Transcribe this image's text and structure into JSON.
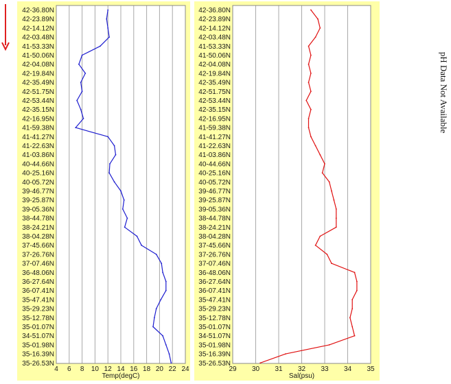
{
  "indicator": {
    "icon": "down-arrow-icon",
    "color": "#e02020"
  },
  "side_note": "pH Data Not Available",
  "colors": {
    "panel_bg": "#ffffa8",
    "plot_bg": "#ffffff",
    "grid": "#a8a8a8",
    "temp_line": "#1c1ccf",
    "sal_line": "#e01010"
  },
  "chart_data": [
    {
      "type": "line",
      "xlabel": "Temp(degC)",
      "xlim": [
        4,
        24
      ],
      "xticks": [
        4,
        6,
        8,
        10,
        12,
        14,
        16,
        18,
        20,
        22,
        24
      ],
      "grid": true,
      "categories": [
        "42-36.80N",
        "42-23.89N",
        "42-14.12N",
        "42-03.48N",
        "41-53.33N",
        "41-50.06N",
        "42-04.08N",
        "42-19.84N",
        "42-35.49N",
        "42-51.75N",
        "42-53.44N",
        "42-35.15N",
        "42-16.95N",
        "41-59.38N",
        "41-41.27N",
        "41-22.63N",
        "41-03.86N",
        "40-44.66N",
        "40-25.16N",
        "40-05.72N",
        "39-46.77N",
        "39-25.87N",
        "39-05.36N",
        "38-44.78N",
        "38-24.21N",
        "38-04.28N",
        "37-45.66N",
        "37-26.76N",
        "37-07.46N",
        "36-48.06N",
        "36-27.64N",
        "36-07.41N",
        "35-47.41N",
        "35-29.23N",
        "35-12.78N",
        "35-01.07N",
        "34-51.07N",
        "35-01.98N",
        "35-16.39N",
        "35-26.53N"
      ],
      "values": [
        12.0,
        11.8,
        12.0,
        12.2,
        10.8,
        8.0,
        7.5,
        8.5,
        7.8,
        8.0,
        7.2,
        7.8,
        8.2,
        7.0,
        12.0,
        13.0,
        13.2,
        12.3,
        12.2,
        13.0,
        14.0,
        14.5,
        14.3,
        15.0,
        14.6,
        16.5,
        17.2,
        19.5,
        20.3,
        20.5,
        21.0,
        21.0,
        20.2,
        19.5,
        19.2,
        19.0,
        20.5,
        21.0,
        21.5,
        21.8
      ]
    },
    {
      "type": "line",
      "xlabel": "Sal(psu)",
      "xlim": [
        29,
        35
      ],
      "xticks": [
        29,
        30,
        31,
        32,
        33,
        34,
        35
      ],
      "grid": true,
      "categories": [
        "42-36.80N",
        "42-23.89N",
        "42-14.12N",
        "42-03.48N",
        "41-53.33N",
        "41-50.06N",
        "42-04.08N",
        "42-19.84N",
        "42-35.49N",
        "42-51.75N",
        "42-53.44N",
        "42-35.15N",
        "42-16.95N",
        "41-59.38N",
        "41-41.27N",
        "41-22.63N",
        "41-03.86N",
        "40-44.66N",
        "40-25.16N",
        "40-05.72N",
        "39-46.77N",
        "39-25.87N",
        "39-05.36N",
        "38-44.78N",
        "38-24.21N",
        "38-04.28N",
        "37-45.66N",
        "37-26.76N",
        "37-07.46N",
        "36-48.06N",
        "36-27.64N",
        "36-07.41N",
        "35-47.41N",
        "35-29.23N",
        "35-12.78N",
        "35-01.07N",
        "34-51.07N",
        "35-01.98N",
        "35-16.39N",
        "35-26.53N"
      ],
      "values": [
        32.4,
        32.7,
        32.8,
        32.6,
        32.3,
        32.4,
        32.3,
        32.4,
        32.3,
        32.4,
        32.2,
        32.4,
        32.3,
        32.3,
        32.4,
        32.6,
        32.8,
        33.0,
        32.9,
        33.2,
        33.3,
        33.4,
        33.5,
        33.5,
        33.5,
        32.8,
        32.6,
        33.1,
        33.3,
        34.3,
        34.4,
        34.4,
        34.2,
        34.2,
        34.1,
        34.2,
        34.3,
        33.2,
        31.3,
        30.2
      ]
    }
  ]
}
